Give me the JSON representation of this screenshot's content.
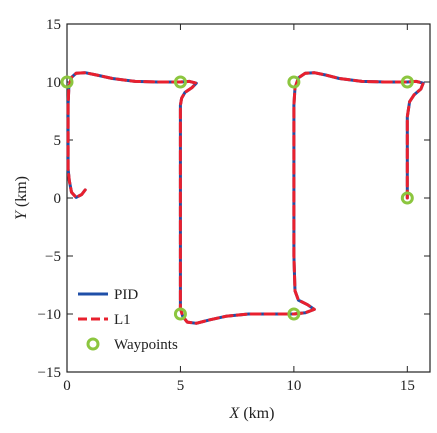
{
  "chart_data": {
    "type": "line",
    "xlabel": {
      "var": "X",
      "unit": " (km)"
    },
    "ylabel": {
      "var": "Y",
      "unit": " (km)"
    },
    "xlim": [
      0,
      16
    ],
    "ylim": [
      -15,
      15
    ],
    "xticks": [
      0,
      5,
      10,
      15
    ],
    "yticks": [
      -15,
      -10,
      -5,
      0,
      5,
      10,
      15
    ],
    "xtick_labels": [
      "0",
      "5",
      "10",
      "15"
    ],
    "ytick_labels": [
      "−15",
      "−10",
      "−5",
      "0",
      "5",
      "10",
      "15"
    ],
    "grid": false,
    "legend_position": "bottom-left",
    "series": [
      {
        "name": "PID",
        "style": "solid",
        "color": "#1f4fa8",
        "points": [
          [
            0.8,
            0.7
          ],
          [
            0.65,
            0.3
          ],
          [
            0.4,
            0.05
          ],
          [
            0.2,
            0.5
          ],
          [
            0.1,
            1.5
          ],
          [
            0.05,
            2.5
          ],
          [
            0.05,
            4
          ],
          [
            0.05,
            6
          ],
          [
            0.05,
            8
          ],
          [
            0.08,
            9.5
          ],
          [
            0.2,
            10.4
          ],
          [
            0.4,
            10.75
          ],
          [
            0.8,
            10.8
          ],
          [
            1.3,
            10.6
          ],
          [
            2,
            10.3
          ],
          [
            3,
            10.05
          ],
          [
            4,
            10
          ],
          [
            5,
            10
          ],
          [
            5.4,
            10.05
          ],
          [
            5.7,
            9.9
          ],
          [
            5.5,
            9.5
          ],
          [
            5.2,
            9.1
          ],
          [
            5.05,
            8.6
          ],
          [
            5.0,
            8
          ],
          [
            5,
            5
          ],
          [
            5,
            0
          ],
          [
            5,
            -5
          ],
          [
            5,
            -8
          ],
          [
            5.0,
            -9.5
          ],
          [
            5.1,
            -10.2
          ],
          [
            5.3,
            -10.7
          ],
          [
            5.7,
            -10.8
          ],
          [
            6.3,
            -10.5
          ],
          [
            7,
            -10.2
          ],
          [
            8,
            -10
          ],
          [
            10,
            -10
          ],
          [
            10.5,
            -9.9
          ],
          [
            10.9,
            -9.6
          ],
          [
            10.6,
            -9.2
          ],
          [
            10.2,
            -8.8
          ],
          [
            10.05,
            -8
          ],
          [
            10,
            -5
          ],
          [
            10,
            0
          ],
          [
            10,
            5
          ],
          [
            10,
            8
          ],
          [
            10.05,
            9.5
          ],
          [
            10.2,
            10.35
          ],
          [
            10.5,
            10.75
          ],
          [
            10.9,
            10.8
          ],
          [
            11.4,
            10.6
          ],
          [
            12,
            10.3
          ],
          [
            13,
            10.05
          ],
          [
            14,
            10
          ],
          [
            15,
            10
          ],
          [
            15.4,
            10.05
          ],
          [
            15.7,
            9.9
          ],
          [
            15.6,
            9.4
          ],
          [
            15.3,
            8.9
          ],
          [
            15.1,
            8.3
          ],
          [
            15,
            7
          ],
          [
            15,
            3
          ],
          [
            15,
            0
          ]
        ]
      },
      {
        "name": "L1",
        "style": "dashed",
        "color": "#e8202e",
        "points": [
          [
            0.8,
            0.7
          ],
          [
            0.65,
            0.3
          ],
          [
            0.4,
            0.05
          ],
          [
            0.2,
            0.5
          ],
          [
            0.1,
            1.5
          ],
          [
            0.05,
            2.5
          ],
          [
            0.05,
            4
          ],
          [
            0.05,
            6
          ],
          [
            0.05,
            8
          ],
          [
            0.08,
            9.5
          ],
          [
            0.2,
            10.4
          ],
          [
            0.4,
            10.75
          ],
          [
            0.8,
            10.8
          ],
          [
            1.3,
            10.6
          ],
          [
            2,
            10.3
          ],
          [
            3,
            10.05
          ],
          [
            4,
            10
          ],
          [
            5,
            10
          ],
          [
            5.4,
            10.05
          ],
          [
            5.7,
            9.9
          ],
          [
            5.5,
            9.5
          ],
          [
            5.2,
            9.1
          ],
          [
            5.05,
            8.6
          ],
          [
            5.0,
            8
          ],
          [
            5,
            5
          ],
          [
            5,
            0
          ],
          [
            5,
            -5
          ],
          [
            5,
            -8
          ],
          [
            5.0,
            -9.5
          ],
          [
            5.1,
            -10.2
          ],
          [
            5.3,
            -10.7
          ],
          [
            5.7,
            -10.8
          ],
          [
            6.3,
            -10.5
          ],
          [
            7,
            -10.2
          ],
          [
            8,
            -10
          ],
          [
            10,
            -10
          ],
          [
            10.5,
            -9.9
          ],
          [
            10.9,
            -9.6
          ],
          [
            10.6,
            -9.2
          ],
          [
            10.2,
            -8.8
          ],
          [
            10.05,
            -8
          ],
          [
            10,
            -5
          ],
          [
            10,
            0
          ],
          [
            10,
            5
          ],
          [
            10,
            8
          ],
          [
            10.05,
            9.5
          ],
          [
            10.2,
            10.35
          ],
          [
            10.5,
            10.75
          ],
          [
            10.9,
            10.8
          ],
          [
            11.4,
            10.6
          ],
          [
            12,
            10.3
          ],
          [
            13,
            10.05
          ],
          [
            14,
            10
          ],
          [
            15,
            10
          ],
          [
            15.4,
            10.05
          ],
          [
            15.7,
            9.9
          ],
          [
            15.6,
            9.4
          ],
          [
            15.3,
            8.9
          ],
          [
            15.1,
            8.3
          ],
          [
            15,
            7
          ],
          [
            15,
            3
          ],
          [
            15,
            0
          ]
        ]
      }
    ],
    "waypoints": {
      "name": "Waypoints",
      "color": "#8cc63f",
      "points": [
        [
          0,
          10
        ],
        [
          5,
          10
        ],
        [
          5,
          -10
        ],
        [
          10,
          -10
        ],
        [
          10,
          10
        ],
        [
          15,
          10
        ],
        [
          15,
          0
        ]
      ]
    }
  }
}
